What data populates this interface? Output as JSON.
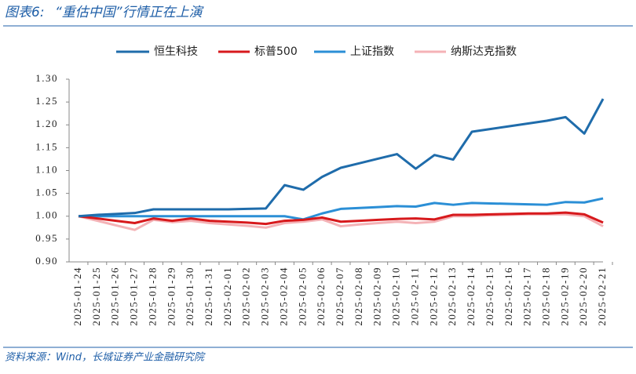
{
  "chart_data": {
    "type": "line",
    "figure_label": "图表6:",
    "title": "“重估中国”行情正在上演",
    "source": "资料来源：Wind，长城证券产业金融研究院",
    "categories": [
      "2025-01-24",
      "2025-01-25",
      "2025-01-26",
      "2025-01-27",
      "2025-01-28",
      "2025-01-29",
      "2025-01-30",
      "2025-01-31",
      "2025-02-01",
      "2025-02-02",
      "2025-02-03",
      "2025-02-04",
      "2025-02-05",
      "2025-02-06",
      "2025-02-07",
      "2025-02-08",
      "2025-02-09",
      "2025-02-10",
      "2025-02-11",
      "2025-02-12",
      "2025-02-13",
      "2025-02-14",
      "2025-02-15",
      "2025-02-16",
      "2025-02-17",
      "2025-02-18",
      "2025-02-19",
      "2025-02-20",
      "2025-02-21"
    ],
    "series": [
      {
        "name": "恒生科技",
        "color": "#1f6cab",
        "values": [
          1.0,
          1.003,
          1.005,
          1.007,
          1.015,
          1.015,
          1.015,
          1.015,
          1.015,
          1.016,
          1.017,
          1.068,
          1.058,
          1.086,
          1.106,
          1.116,
          1.126,
          1.136,
          1.104,
          1.134,
          1.124,
          1.185,
          1.191,
          1.197,
          1.203,
          1.209,
          1.217,
          1.181,
          1.257
        ]
      },
      {
        "name": "标普500",
        "color": "#d7191c",
        "values": [
          1.0,
          0.995,
          0.99,
          0.985,
          0.995,
          0.99,
          0.995,
          0.99,
          0.988,
          0.986,
          0.983,
          0.99,
          0.992,
          0.997,
          0.988,
          0.99,
          0.992,
          0.994,
          0.995,
          0.993,
          1.003,
          1.003,
          1.004,
          1.005,
          1.006,
          1.006,
          1.008,
          1.004,
          0.986
        ]
      },
      {
        "name": "上证指数",
        "color": "#2b8fd6",
        "values": [
          1.0,
          1.0,
          1.0,
          1.0,
          1.0,
          1.0,
          1.0,
          1.0,
          1.0,
          1.0,
          1.0,
          1.0,
          0.993,
          1.006,
          1.016,
          1.018,
          1.02,
          1.022,
          1.021,
          1.029,
          1.025,
          1.029,
          1.028,
          1.027,
          1.026,
          1.025,
          1.031,
          1.03,
          1.039
        ]
      },
      {
        "name": "纳斯达克指数",
        "color": "#f4b2b6",
        "values": [
          1.0,
          0.99,
          0.98,
          0.97,
          0.992,
          0.987,
          0.99,
          0.985,
          0.982,
          0.979,
          0.975,
          0.985,
          0.988,
          0.993,
          0.978,
          0.982,
          0.985,
          0.988,
          0.985,
          0.988,
          1.0,
          1.0,
          1.002,
          1.003,
          1.004,
          1.004,
          1.004,
          1.0,
          0.978
        ]
      }
    ],
    "ylim": [
      0.9,
      1.3
    ],
    "yticks": [
      {
        "value": 0.9,
        "label": "0.90"
      },
      0.95,
      {
        "value": 1.0,
        "label": "1.00"
      },
      1.05,
      {
        "value": 1.1,
        "label": "1.10"
      },
      1.15,
      {
        "value": 1.2,
        "label": "1.20"
      },
      1.25,
      {
        "value": 1.3,
        "label": "1.30"
      }
    ],
    "grid": false,
    "legend": "top"
  }
}
